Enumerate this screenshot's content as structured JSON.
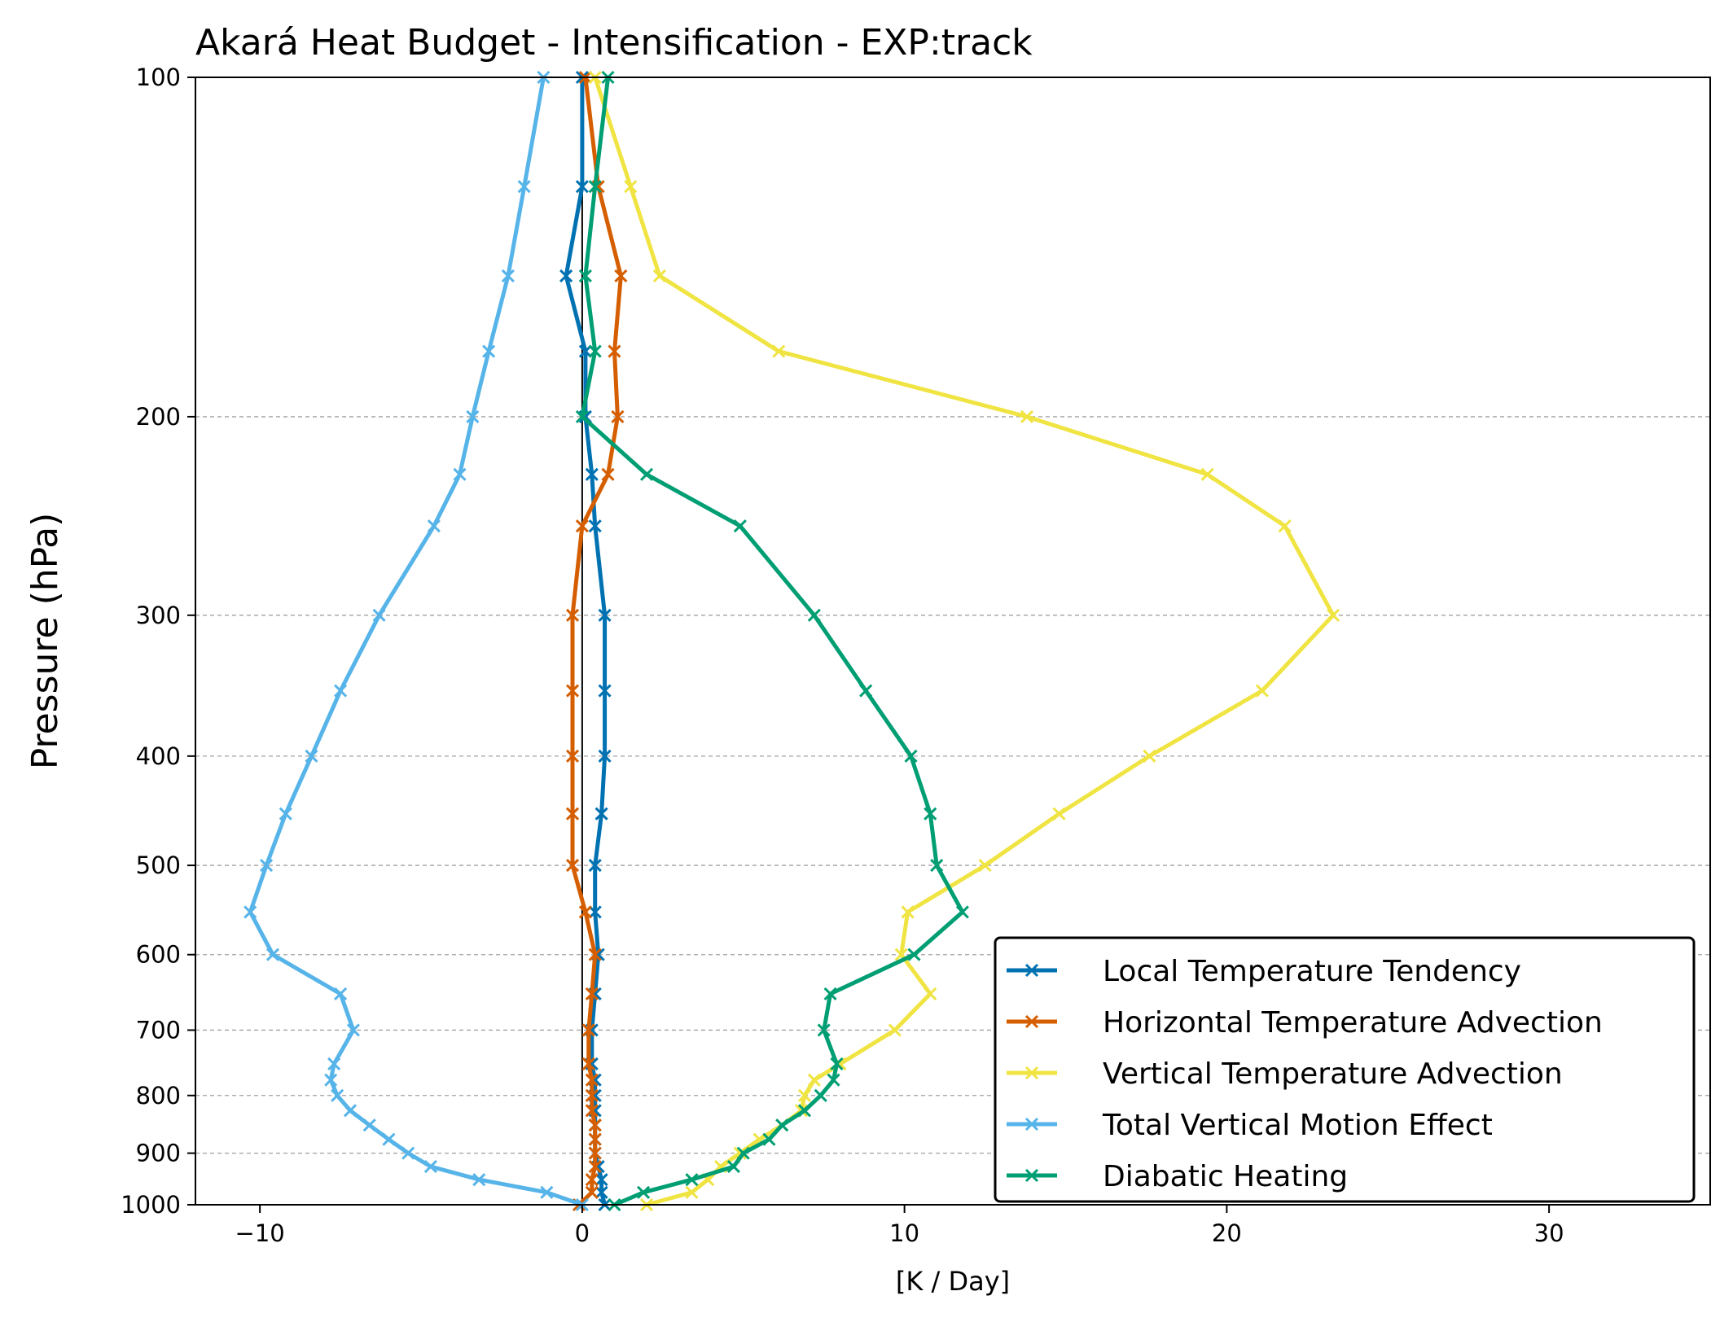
{
  "chart_data": {
    "type": "line",
    "title": "Akará Heat Budget - Intensification - EXP:track",
    "xlabel": "[K / Day]",
    "ylabel": "Pressure (hPa)",
    "xlim": [
      -12,
      35
    ],
    "ylim": [
      1000,
      100
    ],
    "y_scale": "log",
    "grid": "horizontal dashed at y ticks",
    "legend_position": "lower-right",
    "x_ticks": [
      -10,
      0,
      10,
      20,
      30
    ],
    "x_tick_labels": [
      "−10",
      "0",
      "10",
      "20",
      "30"
    ],
    "y_ticks": [
      100,
      200,
      300,
      400,
      500,
      600,
      700,
      800,
      900,
      1000
    ],
    "y_tick_labels": [
      "100",
      "200",
      "300",
      "400",
      "500",
      "600",
      "700",
      "800",
      "900",
      "1000"
    ],
    "levels": [
      100,
      125,
      150,
      175,
      200,
      225,
      250,
      300,
      350,
      400,
      450,
      500,
      550,
      600,
      650,
      700,
      750,
      775,
      800,
      825,
      850,
      875,
      900,
      925,
      950,
      975,
      1000
    ],
    "series": [
      {
        "name": "Local Temperature Tendency",
        "color": "#0072b2",
        "values": [
          0.0,
          0.0,
          -0.5,
          0.1,
          0.1,
          0.3,
          0.4,
          0.7,
          0.7,
          0.7,
          0.6,
          0.4,
          0.4,
          0.5,
          0.4,
          0.3,
          0.3,
          0.4,
          0.4,
          0.4,
          0.4,
          0.4,
          0.4,
          0.5,
          0.6,
          0.6,
          0.7
        ]
      },
      {
        "name": "Horizontal Temperature Advection",
        "color": "#d55e00",
        "values": [
          0.1,
          0.5,
          1.2,
          1.0,
          1.1,
          0.8,
          0.0,
          -0.3,
          -0.3,
          -0.3,
          -0.3,
          -0.3,
          0.1,
          0.4,
          0.3,
          0.2,
          0.2,
          0.3,
          0.3,
          0.3,
          0.4,
          0.4,
          0.4,
          0.4,
          0.3,
          0.3,
          -0.1
        ]
      },
      {
        "name": "Vertical Temperature Advection",
        "color": "#f0e442",
        "values": [
          0.4,
          1.5,
          2.4,
          6.1,
          13.8,
          19.4,
          21.8,
          23.3,
          21.1,
          17.6,
          14.8,
          12.5,
          10.1,
          9.9,
          10.8,
          9.7,
          8.0,
          7.2,
          6.9,
          6.8,
          6.2,
          5.5,
          4.9,
          4.3,
          3.9,
          3.4,
          2.0
        ]
      },
      {
        "name": "Total Vertical Motion Effect",
        "color": "#56b4e9",
        "values": [
          -1.2,
          -1.8,
          -2.3,
          -2.9,
          -3.4,
          -3.8,
          -4.6,
          -6.3,
          -7.5,
          -8.4,
          -9.2,
          -9.8,
          -10.3,
          -9.6,
          -7.5,
          -7.1,
          -7.7,
          -7.8,
          -7.6,
          -7.2,
          -6.6,
          -6.0,
          -5.4,
          -4.7,
          -3.2,
          -1.1,
          0.0
        ]
      },
      {
        "name": "Diabatic Heating",
        "color": "#009e73",
        "values": [
          0.8,
          0.4,
          0.1,
          0.4,
          0.0,
          2.0,
          4.9,
          7.2,
          8.8,
          10.2,
          10.8,
          11.0,
          11.8,
          10.3,
          7.7,
          7.5,
          7.9,
          7.8,
          7.4,
          6.9,
          6.2,
          5.8,
          5.0,
          4.7,
          3.4,
          1.9,
          1.0
        ]
      }
    ]
  }
}
